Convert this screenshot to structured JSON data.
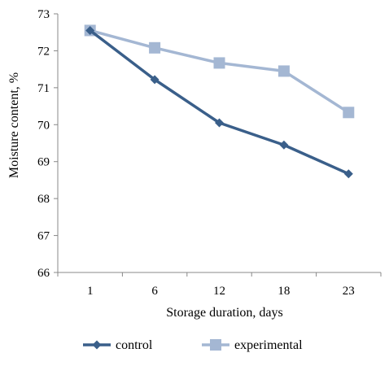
{
  "chart_data": {
    "type": "line",
    "title": "",
    "xlabel": "Storage duration, days",
    "ylabel": "Moisture content, %",
    "categories": [
      "1",
      "6",
      "12",
      "18",
      "23"
    ],
    "ylim": [
      66,
      73
    ],
    "yticks": [
      "66",
      "67",
      "68",
      "69",
      "70",
      "71",
      "72",
      "73"
    ],
    "grid": false,
    "legend_position": "bottom",
    "series": [
      {
        "name": "control",
        "values": [
          72.55,
          71.22,
          70.05,
          69.45,
          68.67
        ],
        "color": "#3a5f8a",
        "marker": "diamond"
      },
      {
        "name": "experimental",
        "values": [
          72.55,
          72.08,
          71.67,
          71.45,
          70.33
        ],
        "color": "#a4b7d3",
        "marker": "square"
      }
    ]
  }
}
